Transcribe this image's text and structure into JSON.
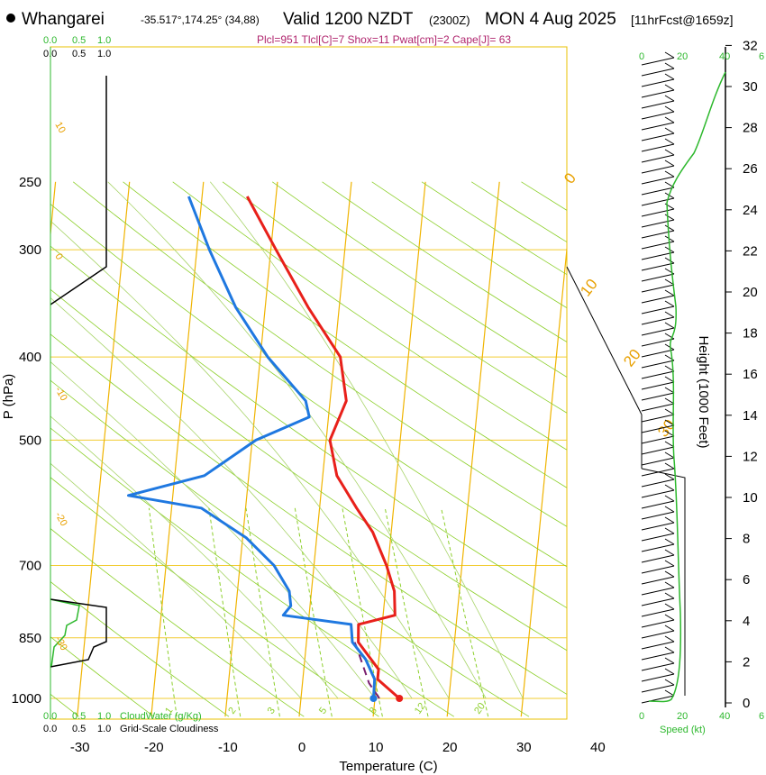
{
  "header": {
    "station": "Whangarei",
    "coords": "-35.517°,174.25° (34,88)",
    "valid": "Valid 1200 NZDT",
    "utc": "(2300Z)",
    "date": "MON 4 Aug 2025",
    "forecast": "[11hrFcst@1659z]",
    "indices": "Plcl=951 Tlcl[C]=7 Shox=11 Pwat[cm]=2 Cape[J]= 63"
  },
  "colors": {
    "temperature": "#e8201a",
    "dewpoint": "#1f78e0",
    "parcel": "#7a1f6e",
    "isotherm": "#f0b400",
    "dry_adiabat": "#8ccf2a",
    "mixing_ratio": "#8ccf2a",
    "cloud": "#2db82d",
    "wind_speed": "#2db82d"
  },
  "chart_data": {
    "type": "line",
    "title": "",
    "xlabel": "Temperature (C)",
    "ylabel": "P (hPa)",
    "y2label": "Height (1000 Feet)",
    "x_ticks": [
      "-30",
      "-20",
      "-10",
      "0",
      "10",
      "20",
      "30",
      "40"
    ],
    "p_ticks": [
      "250",
      "300",
      "400",
      "500",
      "700",
      "850",
      "1000"
    ],
    "height_ticks": [
      "0",
      "2",
      "4",
      "6",
      "8",
      "10",
      "12",
      "14",
      "16",
      "18",
      "20",
      "22",
      "24",
      "26",
      "28",
      "30",
      "32"
    ],
    "series": [
      {
        "name": "temperature",
        "points": [
          [
            13.3,
            1000
          ],
          [
            10.1,
            950
          ],
          [
            10.1,
            925
          ],
          [
            7.0,
            860
          ],
          [
            6.8,
            820
          ],
          [
            11.6,
            800
          ],
          [
            11.2,
            750
          ],
          [
            9.8,
            700
          ],
          [
            7.5,
            640
          ],
          [
            5.0,
            600
          ],
          [
            1.9,
            550
          ],
          [
            0.5,
            500
          ],
          [
            2.2,
            450
          ],
          [
            0.8,
            400
          ],
          [
            -4.2,
            350
          ],
          [
            -9.3,
            300
          ],
          [
            -13.9,
            260
          ]
        ]
      },
      {
        "name": "dewpoint",
        "points": [
          [
            9.8,
            1000
          ],
          [
            9.7,
            950
          ],
          [
            8.2,
            900
          ],
          [
            6.2,
            860
          ],
          [
            5.8,
            820
          ],
          [
            -3.5,
            800
          ],
          [
            -2.6,
            780
          ],
          [
            -3.0,
            750
          ],
          [
            -5.4,
            700
          ],
          [
            -9.5,
            650
          ],
          [
            -16.0,
            600
          ],
          [
            -26.0,
            580
          ],
          [
            -16.0,
            550
          ],
          [
            -9.5,
            500
          ],
          [
            -2.6,
            470
          ],
          [
            -3.3,
            450
          ],
          [
            -9.0,
            400
          ],
          [
            -14.0,
            350
          ],
          [
            -18.3,
            300
          ],
          [
            -21.8,
            260
          ]
        ]
      },
      {
        "name": "parcel",
        "points": [
          [
            10.6,
            1000
          ],
          [
            9.0,
            960
          ],
          [
            6.8,
            870
          ],
          [
            6.5,
            860
          ]
        ]
      }
    ],
    "cloud_axis_ticks": [
      "0.0",
      "0.5",
      "1.0"
    ],
    "cloud_water_label": "CloudWater (g/Kg)",
    "cloudiness_label": "Grid-Scale Cloudiness",
    "speed_label": "Speed (kt)",
    "speed_ticks": [
      "0",
      "20",
      "40",
      "6"
    ],
    "isotherm_labels": [
      "-30",
      "-20",
      "-10",
      "0",
      "10",
      "20",
      "30",
      "0",
      "10",
      "20",
      "30"
    ],
    "mixing_ratio_labels": [
      "1",
      "2",
      "3",
      "5",
      "8",
      "12",
      "20"
    ]
  }
}
